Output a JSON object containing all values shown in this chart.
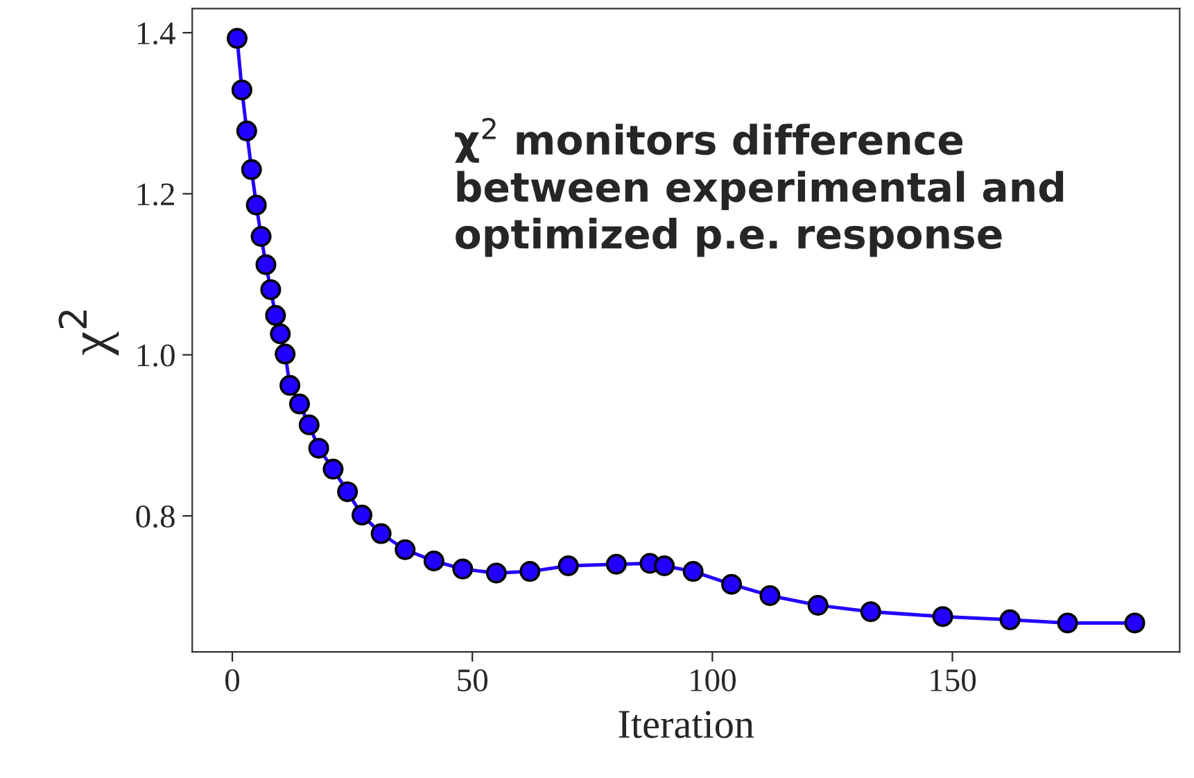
{
  "chart_data": {
    "type": "line",
    "xlabel": "Iteration",
    "ylabel": "χ$^{2}$",
    "annotations": [
      "χ$^{2}$ monitors difference\nbetween experimental and\noptimized p.e. response"
    ],
    "x": [
      1,
      2,
      3,
      4,
      5,
      6,
      7,
      8,
      9,
      10,
      11,
      12,
      14,
      16,
      18,
      21,
      24,
      27,
      31,
      36,
      42,
      48,
      55,
      62,
      70,
      80,
      87,
      90,
      96,
      104,
      112,
      122,
      133,
      148,
      162,
      174,
      188
    ],
    "series": [
      {
        "color": "#2200ff",
        "values": [
          1.393,
          1.329,
          1.278,
          1.23,
          1.186,
          1.147,
          1.112,
          1.081,
          1.049,
          1.026,
          1.001,
          0.962,
          0.939,
          0.913,
          0.884,
          0.858,
          0.83,
          0.801,
          0.778,
          0.758,
          0.744,
          0.734,
          0.729,
          0.731,
          0.738,
          0.74,
          0.741,
          0.738,
          0.731,
          0.715,
          0.701,
          0.689,
          0.681,
          0.675,
          0.671,
          0.667,
          0.667
        ]
      }
    ],
    "marker": "circle",
    "line_style": "solid",
    "xlim": [
      -8.35,
      197.35
    ],
    "xticks": [
      0,
      50,
      100,
      150
    ],
    "ylim": [
      0.631,
      1.43
    ],
    "yticks": [
      0.8,
      {
        "value": 1,
        "label": "1.0"
      },
      1.2,
      1.4
    ],
    "grid": false,
    "legend": false
  }
}
